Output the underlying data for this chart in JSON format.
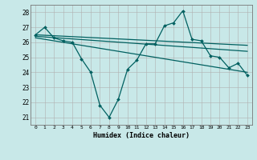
{
  "xlabel": "Humidex (Indice chaleur)",
  "bg_color": "#c8e8e8",
  "grid_color": "#b0b0b0",
  "line_color": "#006060",
  "xlim": [
    -0.5,
    23.5
  ],
  "ylim": [
    20.5,
    28.5
  ],
  "yticks": [
    21,
    22,
    23,
    24,
    25,
    26,
    27,
    28
  ],
  "xticks": [
    0,
    1,
    2,
    3,
    4,
    5,
    6,
    7,
    8,
    9,
    10,
    11,
    12,
    13,
    14,
    15,
    16,
    17,
    18,
    19,
    20,
    21,
    22,
    23
  ],
  "line_zigzag": {
    "x": [
      0,
      1,
      2,
      3,
      4,
      5,
      6,
      7,
      8,
      9,
      10,
      11,
      12,
      13,
      14,
      15,
      16,
      17,
      18,
      19,
      20,
      21,
      22,
      23
    ],
    "y": [
      26.5,
      27.0,
      26.3,
      26.1,
      26.0,
      24.9,
      24.0,
      21.8,
      21.0,
      22.2,
      24.2,
      24.8,
      25.9,
      25.9,
      27.1,
      27.3,
      28.1,
      26.2,
      26.1,
      25.1,
      25.0,
      24.3,
      24.6,
      23.8
    ]
  },
  "line_smooth1": {
    "x": [
      0,
      23
    ],
    "y": [
      26.5,
      25.8
    ]
  },
  "line_smooth2": {
    "x": [
      0,
      23
    ],
    "y": [
      26.4,
      25.4
    ]
  },
  "line_smooth3": {
    "x": [
      0,
      23
    ],
    "y": [
      26.3,
      24.0
    ]
  }
}
